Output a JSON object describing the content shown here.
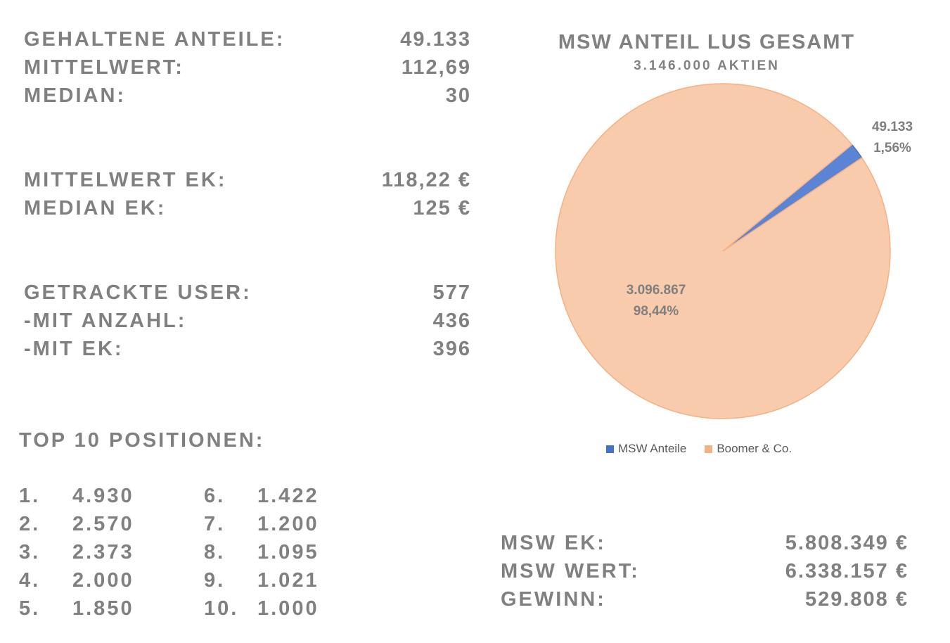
{
  "stats": {
    "anteile_label": "GEHALTENE ANTEILE:",
    "anteile_value": "49.133",
    "mittelwert_label": "MITTELWERT:",
    "mittelwert_value": "112,69",
    "median_label": "MEDIAN:",
    "median_value": "30",
    "mittelwert_ek_label": "MITTELWERT EK:",
    "mittelwert_ek_value": "118,22 €",
    "median_ek_label": "MEDIAN EK:",
    "median_ek_value": "125 €",
    "user_label": "GETRACKTE USER:",
    "user_value": "577",
    "anzahl_label": "-MIT ANZAHL:",
    "anzahl_value": "436",
    "ek_label": "-MIT EK:",
    "ek_value": "396"
  },
  "top10": {
    "title": "TOP 10 POSITIONEN:",
    "positions": [
      {
        "rank": "1.",
        "value": "4.930"
      },
      {
        "rank": "2.",
        "value": "2.570"
      },
      {
        "rank": "3.",
        "value": "2.373"
      },
      {
        "rank": "4.",
        "value": "2.000"
      },
      {
        "rank": "5.",
        "value": "1.850"
      },
      {
        "rank": "6.",
        "value": "1.422"
      },
      {
        "rank": "7.",
        "value": "1.200"
      },
      {
        "rank": "8.",
        "value": "1.095"
      },
      {
        "rank": "9.",
        "value": "1.021"
      },
      {
        "rank": "10.",
        "value": "1.000"
      }
    ]
  },
  "summary": {
    "msw_ek_label": "MSW EK:",
    "msw_ek_value": "5.808.349 €",
    "msw_wert_label": "MSW WERT:",
    "msw_wert_value": "6.338.157 €",
    "gewinn_label": "GEWINN:",
    "gewinn_value": "529.808 €"
  },
  "chart_data": {
    "type": "pie",
    "title": "MSW ANTEIL LUS GESAMT",
    "subtitle": "3.146.000 AKTIEN",
    "legend_position": "bottom",
    "slices": [
      {
        "name": "MSW Anteile",
        "value": 49133,
        "value_label": "49.133",
        "percent_label": "1,56%",
        "color": "#5b84d6"
      },
      {
        "name": "Boomer & Co.",
        "value": 3096867,
        "value_label": "3.096.867",
        "percent_label": "98,44%",
        "color": "#f8cbad"
      }
    ],
    "stroke_colors": [
      "#4472c4",
      "#f4b183"
    ]
  }
}
